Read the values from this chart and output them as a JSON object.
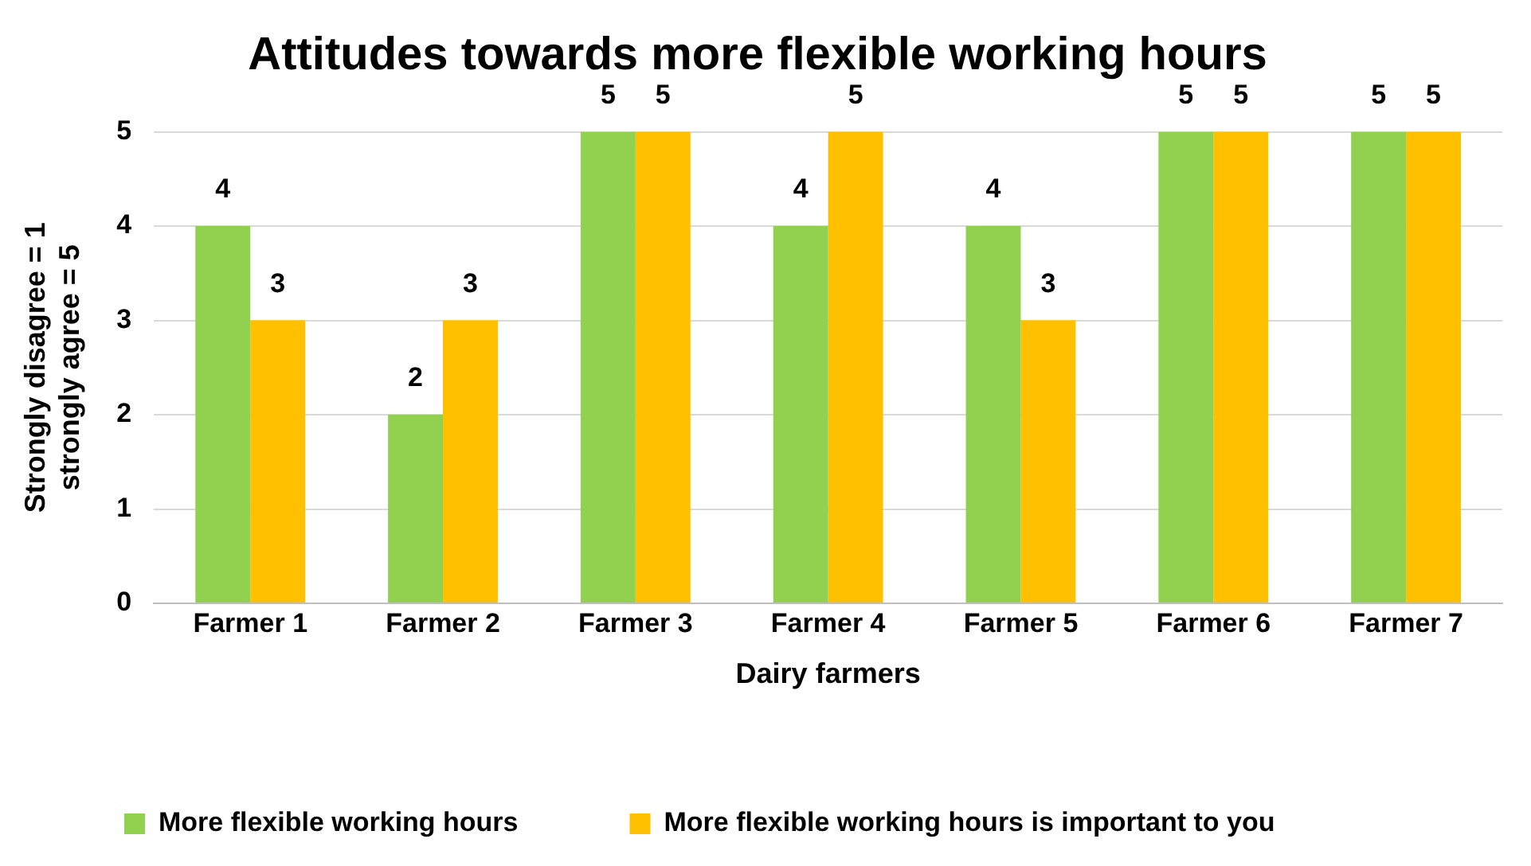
{
  "chart_data": {
    "type": "bar",
    "title": "Attitudes towards more flexible working hours",
    "xlabel": "Dairy farmers",
    "ylabel": "Strongly disagree = 1\nstrongly agree = 5",
    "categories": [
      "Farmer 1",
      "Farmer 2",
      "Farmer 3",
      "Farmer 4",
      "Farmer 5",
      "Farmer 6",
      "Farmer 7"
    ],
    "series": [
      {
        "name": "More flexible working hours",
        "color": "#92d050",
        "values": [
          4,
          2,
          5,
          4,
          4,
          5,
          5
        ]
      },
      {
        "name": "More flexible working hours is important to you",
        "color": "#ffc000",
        "values": [
          3,
          3,
          5,
          5,
          3,
          5,
          5
        ]
      }
    ],
    "ylim": [
      0,
      5
    ],
    "yticks": [
      0,
      1,
      2,
      3,
      4,
      5
    ],
    "grid": "y",
    "legend": "bottom",
    "data_labels": true
  }
}
